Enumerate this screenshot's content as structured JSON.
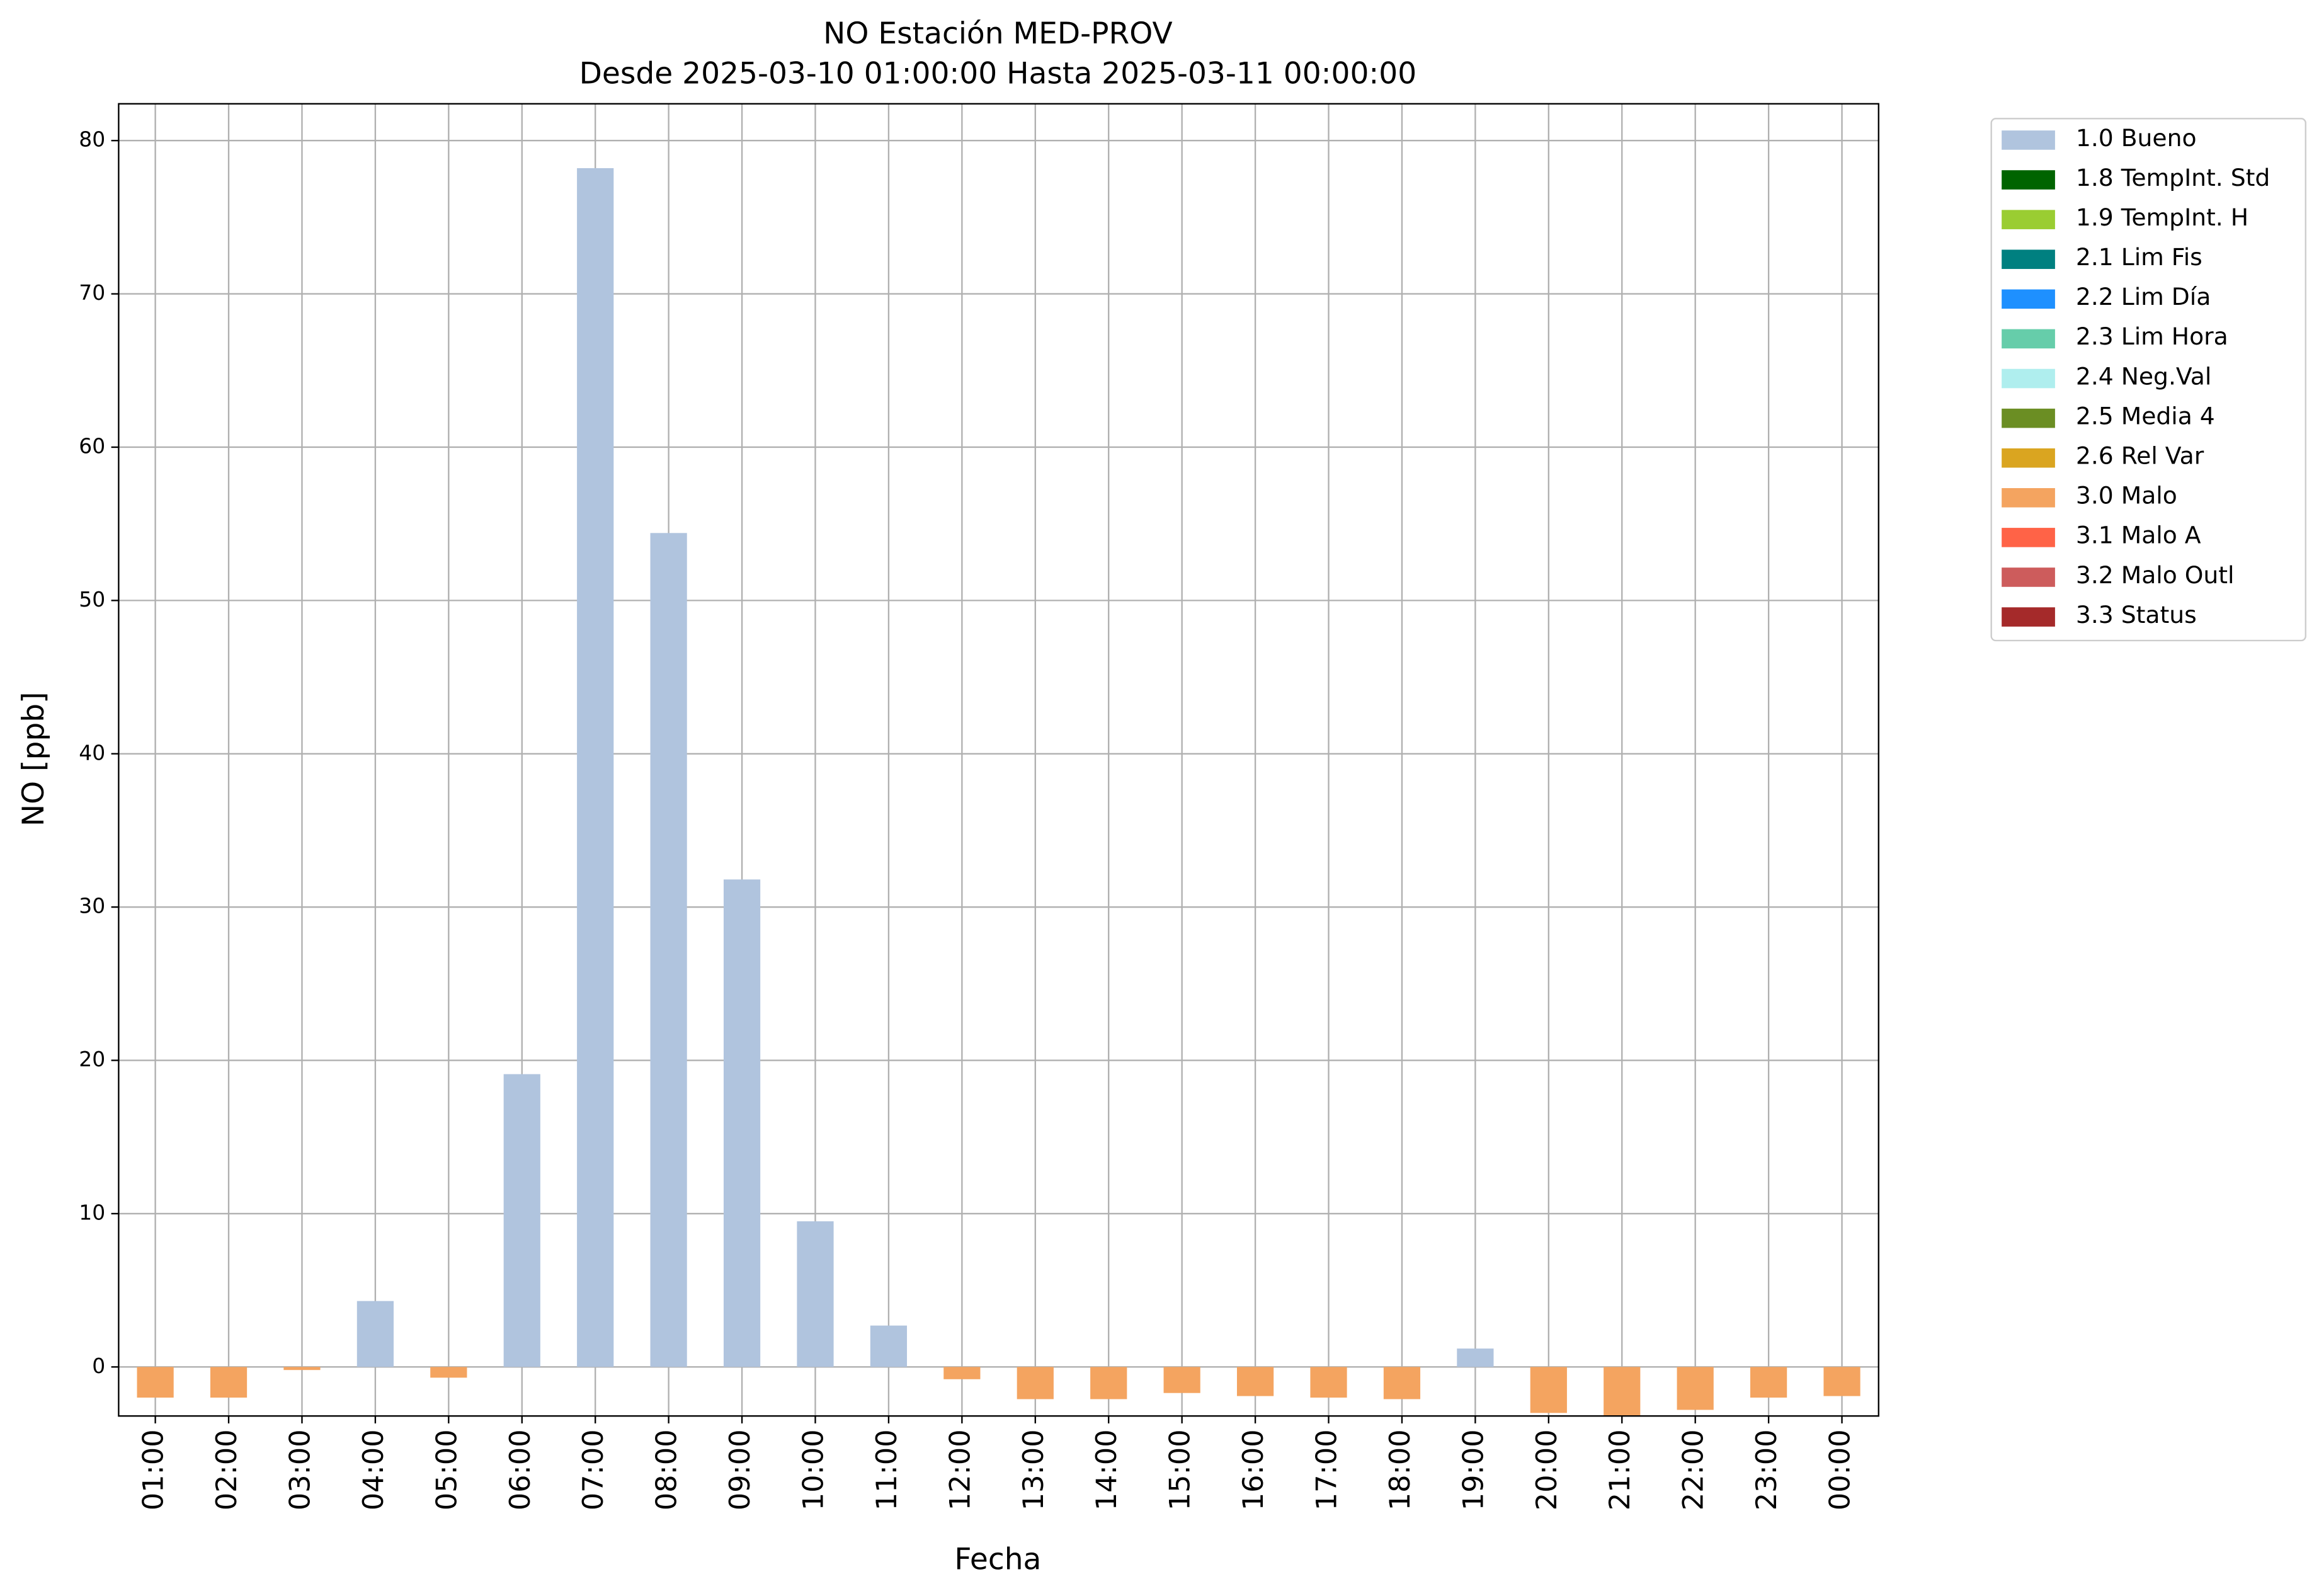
{
  "chart_data": {
    "type": "bar",
    "stacked": true,
    "title": "NO Estación MED-PROV",
    "subtitle": "Desde 2025-03-10 01:00:00 Hasta 2025-03-11 00:00:00",
    "x_label": "Fecha",
    "y_label": "NO [ppb]",
    "categories": [
      "01:00",
      "02:00",
      "03:00",
      "04:00",
      "05:00",
      "06:00",
      "07:00",
      "08:00",
      "09:00",
      "10:00",
      "11:00",
      "12:00",
      "13:00",
      "14:00",
      "15:00",
      "16:00",
      "17:00",
      "18:00",
      "19:00",
      "20:00",
      "21:00",
      "22:00",
      "23:00",
      "00:00"
    ],
    "series": [
      {
        "name": "1.0 Bueno",
        "color": "#b0c4de",
        "values": [
          null,
          null,
          null,
          4.3,
          null,
          19.1,
          78.2,
          54.4,
          31.8,
          9.5,
          2.7,
          null,
          null,
          null,
          null,
          null,
          null,
          null,
          1.2,
          null,
          null,
          null,
          null,
          null
        ]
      },
      {
        "name": "1.8 TempInt. Std",
        "color": "#006400",
        "values": [
          null,
          null,
          null,
          null,
          null,
          null,
          null,
          null,
          null,
          null,
          null,
          null,
          null,
          null,
          null,
          null,
          null,
          null,
          null,
          null,
          null,
          null,
          null,
          null
        ]
      },
      {
        "name": "1.9 TempInt. H",
        "color": "#9acd32",
        "values": [
          null,
          null,
          null,
          null,
          null,
          null,
          null,
          null,
          null,
          null,
          null,
          null,
          null,
          null,
          null,
          null,
          null,
          null,
          null,
          null,
          null,
          null,
          null,
          null
        ]
      },
      {
        "name": "2.1 Lim Fis",
        "color": "#008080",
        "values": [
          null,
          null,
          null,
          null,
          null,
          null,
          null,
          null,
          null,
          null,
          null,
          null,
          null,
          null,
          null,
          null,
          null,
          null,
          null,
          null,
          null,
          null,
          null,
          null
        ]
      },
      {
        "name": "2.2 Lim Día",
        "color": "#1e90ff",
        "values": [
          null,
          null,
          null,
          null,
          null,
          null,
          null,
          null,
          null,
          null,
          null,
          null,
          null,
          null,
          null,
          null,
          null,
          null,
          null,
          null,
          null,
          null,
          null,
          null
        ]
      },
      {
        "name": "2.3 Lim Hora",
        "color": "#66cdaa",
        "values": [
          null,
          null,
          null,
          null,
          null,
          null,
          null,
          null,
          null,
          null,
          null,
          null,
          null,
          null,
          null,
          null,
          null,
          null,
          null,
          null,
          null,
          null,
          null,
          null
        ]
      },
      {
        "name": "2.4 Neg.Val",
        "color": "#afeeee",
        "values": [
          null,
          null,
          null,
          null,
          null,
          null,
          null,
          null,
          null,
          null,
          null,
          null,
          null,
          null,
          null,
          null,
          null,
          null,
          null,
          null,
          null,
          null,
          null,
          null
        ]
      },
      {
        "name": "2.5 Media 4",
        "color": "#6b8e23",
        "values": [
          null,
          null,
          null,
          null,
          null,
          null,
          null,
          null,
          null,
          null,
          null,
          null,
          null,
          null,
          null,
          null,
          null,
          null,
          null,
          null,
          null,
          null,
          null,
          null
        ]
      },
      {
        "name": "2.6 Rel Var",
        "color": "#daa520",
        "values": [
          null,
          null,
          null,
          null,
          null,
          null,
          null,
          null,
          null,
          null,
          null,
          null,
          null,
          null,
          null,
          null,
          null,
          null,
          null,
          null,
          null,
          null,
          null,
          null
        ]
      },
      {
        "name": "3.0 Malo",
        "color": "#f4a460",
        "values": [
          -2.0,
          -2.0,
          -0.2,
          null,
          -0.7,
          null,
          null,
          null,
          null,
          null,
          null,
          -0.8,
          -2.1,
          -2.1,
          -1.7,
          -1.9,
          -2.0,
          -2.1,
          null,
          -3.0,
          -3.3,
          -2.8,
          -2.0,
          -1.9
        ]
      },
      {
        "name": "3.1 Malo A",
        "color": "#ff6347",
        "values": [
          null,
          null,
          null,
          null,
          null,
          null,
          null,
          null,
          null,
          null,
          null,
          null,
          null,
          null,
          null,
          null,
          null,
          null,
          null,
          null,
          null,
          null,
          null,
          null
        ]
      },
      {
        "name": "3.2 Malo Outl",
        "color": "#cd5c5c",
        "values": [
          null,
          null,
          null,
          null,
          null,
          null,
          null,
          null,
          null,
          null,
          null,
          null,
          null,
          null,
          null,
          null,
          null,
          null,
          null,
          null,
          null,
          null,
          null,
          null
        ]
      },
      {
        "name": "3.3 Status",
        "color": "#a52a2a",
        "values": [
          null,
          null,
          null,
          null,
          null,
          null,
          null,
          null,
          null,
          null,
          null,
          null,
          null,
          null,
          null,
          null,
          null,
          null,
          null,
          null,
          null,
          null,
          null,
          null
        ]
      }
    ],
    "ylim": [
      -3.2,
      82.4
    ],
    "yticks": [
      0,
      10,
      20,
      30,
      40,
      50,
      60,
      70,
      80
    ],
    "grid": true,
    "legend": "outside right"
  }
}
